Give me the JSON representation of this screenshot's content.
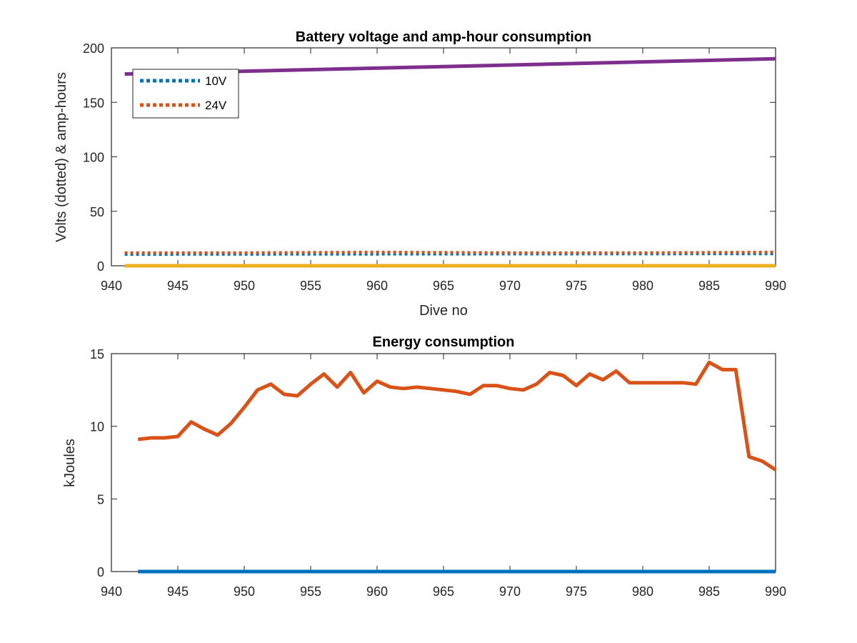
{
  "chart_data": [
    {
      "type": "line",
      "title": "Battery voltage and amp-hour consumption",
      "xlabel": "Dive no",
      "ylabel": "Volts (dotted) & amp-hours",
      "xlim": [
        940,
        990
      ],
      "ylim": [
        0,
        200
      ],
      "xticks": [
        "940",
        "945",
        "950",
        "955",
        "960",
        "965",
        "970",
        "975",
        "980",
        "985",
        "990"
      ],
      "yticks": [
        "0",
        "50",
        "100",
        "150",
        "200"
      ],
      "legend": {
        "placement": "top-left"
      },
      "series": [
        {
          "name": "10V",
          "style": "dotted",
          "color": "#0072BD",
          "x": [
            941,
            990
          ],
          "y": [
            10.5,
            11
          ]
        },
        {
          "name": "24V",
          "style": "dotted",
          "color": "#D95319",
          "x": [
            941,
            950,
            960,
            970,
            980,
            990
          ],
          "y": [
            12,
            12,
            12.5,
            12,
            12,
            12.5
          ]
        },
        {
          "style": "solid",
          "color": "#7E2F8E",
          "x": [
            941,
            990
          ],
          "y": [
            176,
            190
          ]
        },
        {
          "style": "solid",
          "color": "#EDB120",
          "x": [
            941,
            990
          ],
          "y": [
            0,
            0
          ]
        }
      ]
    },
    {
      "type": "line",
      "title": "Energy consumption",
      "xlabel": "",
      "ylabel": "kJoules",
      "xlim": [
        940,
        990
      ],
      "ylim": [
        0,
        15
      ],
      "xticks": [
        "940",
        "945",
        "950",
        "955",
        "960",
        "965",
        "970",
        "975",
        "980",
        "985",
        "990"
      ],
      "yticks": [
        "0",
        "5",
        "10",
        "15"
      ],
      "series": [
        {
          "style": "solid",
          "color": "#0072BD",
          "x": [
            942,
            990
          ],
          "y": [
            0,
            0
          ]
        },
        {
          "style": "solid",
          "color": "#D95319",
          "x": [
            942,
            943,
            944,
            945,
            946,
            947,
            948,
            949,
            950,
            951,
            952,
            953,
            954,
            955,
            956,
            957,
            958,
            959,
            960,
            961,
            962,
            963,
            964,
            965,
            966,
            967,
            968,
            969,
            970,
            971,
            972,
            973,
            974,
            975,
            976,
            977,
            978,
            979,
            980,
            981,
            982,
            983,
            984,
            985,
            986,
            987,
            988,
            989,
            990
          ],
          "y": [
            9.1,
            9.2,
            9.2,
            9.3,
            10.3,
            9.8,
            9.4,
            10.2,
            11.3,
            12.5,
            12.9,
            12.2,
            12.1,
            12.9,
            13.6,
            12.7,
            13.7,
            12.3,
            13.1,
            12.7,
            12.6,
            12.7,
            12.6,
            12.5,
            12.4,
            12.2,
            12.8,
            12.8,
            12.6,
            12.5,
            12.9,
            13.7,
            13.5,
            12.8,
            13.6,
            13.2,
            13.8,
            13.0,
            13.0,
            13.0,
            13.0,
            13.0,
            12.9,
            14.4,
            13.9,
            13.9,
            7.9,
            7.6,
            7.0
          ]
        }
      ]
    }
  ]
}
